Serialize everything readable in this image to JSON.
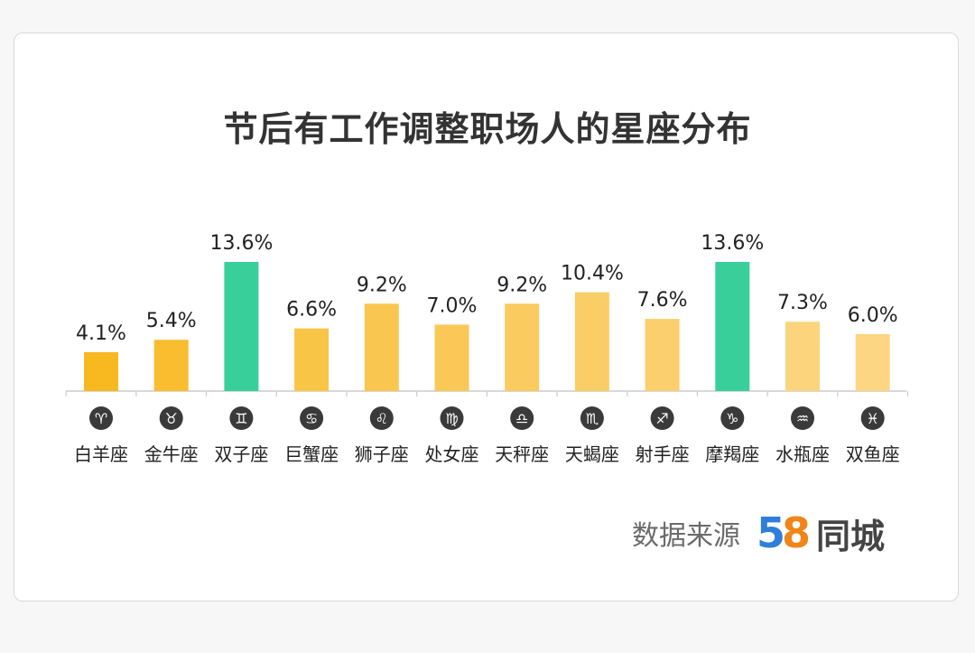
{
  "title": "节后有工作调整职场人的星座分布",
  "source": {
    "label": "数据来源",
    "logo_digit_1": "5",
    "logo_digit_2": "8",
    "logo_text": "同城"
  },
  "colors": {
    "highlight": "#38cf9b",
    "bar_gradient": [
      "#f7b820",
      "#f9bd2f",
      "#f9c23c",
      "#f9c547",
      "#f9c750",
      "#fac856",
      "#facb5e",
      "#facd66",
      "#fbcf6d",
      "#fbd274",
      "#fbd47c",
      "#fcd683"
    ],
    "icon_bg": "#3a3a3a",
    "axis": "#cccccc"
  },
  "chart_data": {
    "type": "bar",
    "title": "节后有工作调整职场人的星座分布",
    "categories": [
      "白羊座",
      "金牛座",
      "双子座",
      "巨蟹座",
      "狮子座",
      "处女座",
      "天秤座",
      "天蝎座",
      "射手座",
      "摩羯座",
      "水瓶座",
      "双鱼座"
    ],
    "symbols": [
      "♈",
      "♉",
      "♊",
      "♋",
      "♌",
      "♍",
      "♎",
      "♏",
      "♐",
      "♑",
      "♒",
      "♓"
    ],
    "icon_names": [
      "aries-icon",
      "taurus-icon",
      "gemini-icon",
      "cancer-icon",
      "leo-icon",
      "virgo-icon",
      "libra-icon",
      "scorpio-icon",
      "sagittarius-icon",
      "capricorn-icon",
      "aquarius-icon",
      "pisces-icon"
    ],
    "values": [
      4.1,
      5.4,
      13.6,
      6.6,
      9.2,
      7.0,
      9.2,
      10.4,
      7.6,
      13.6,
      7.3,
      6.0
    ],
    "value_labels": [
      "4.1%",
      "5.4%",
      "13.6%",
      "6.6%",
      "9.2%",
      "7.0%",
      "9.2%",
      "10.4%",
      "7.6%",
      "13.6%",
      "7.3%",
      "6.0%"
    ],
    "highlighted": [
      "双子座",
      "摩羯座"
    ],
    "unit": "%",
    "ylim": [
      0,
      13.6
    ],
    "grid": false,
    "legend": "none"
  }
}
